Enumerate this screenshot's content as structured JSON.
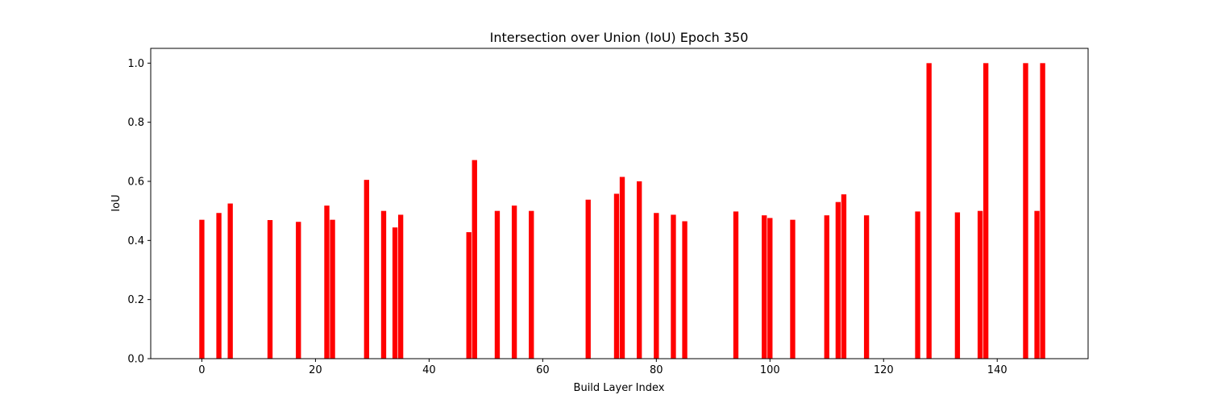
{
  "chart_data": {
    "type": "bar",
    "title": "Intersection over Union (IoU) Epoch 350",
    "xlabel": "Build Layer Index",
    "ylabel": "IoU",
    "xlim": [
      -9,
      156
    ],
    "ylim": [
      0,
      1.05
    ],
    "xticks": [
      0,
      20,
      40,
      60,
      80,
      100,
      120,
      140
    ],
    "yticks": [
      0.0,
      0.2,
      0.4,
      0.6,
      0.8,
      1.0
    ],
    "xtick_labels": [
      "0",
      "20",
      "40",
      "60",
      "80",
      "100",
      "120",
      "140"
    ],
    "ytick_labels": [
      "0.0",
      "0.2",
      "0.4",
      "0.6",
      "0.8",
      "1.0"
    ],
    "bar_width": 0.9,
    "bar_color": "#ff0000",
    "grid": false,
    "x": [
      0,
      3,
      5,
      12,
      17,
      22,
      23,
      29,
      32,
      34,
      35,
      47,
      48,
      52,
      55,
      58,
      68,
      73,
      74,
      77,
      80,
      83,
      85,
      94,
      99,
      100,
      104,
      110,
      112,
      113,
      117,
      126,
      128,
      133,
      137,
      138,
      145,
      147,
      148
    ],
    "values": [
      0.47,
      0.493,
      0.525,
      0.469,
      0.463,
      0.518,
      0.47,
      0.605,
      0.5,
      0.444,
      0.487,
      0.428,
      0.672,
      0.5,
      0.518,
      0.5,
      0.538,
      0.558,
      0.615,
      0.6,
      0.493,
      0.487,
      0.465,
      0.498,
      0.485,
      0.476,
      0.47,
      0.485,
      0.53,
      0.556,
      0.485,
      0.498,
      1.0,
      0.495,
      0.5,
      1.0,
      1.0,
      0.5,
      1.0
    ]
  }
}
